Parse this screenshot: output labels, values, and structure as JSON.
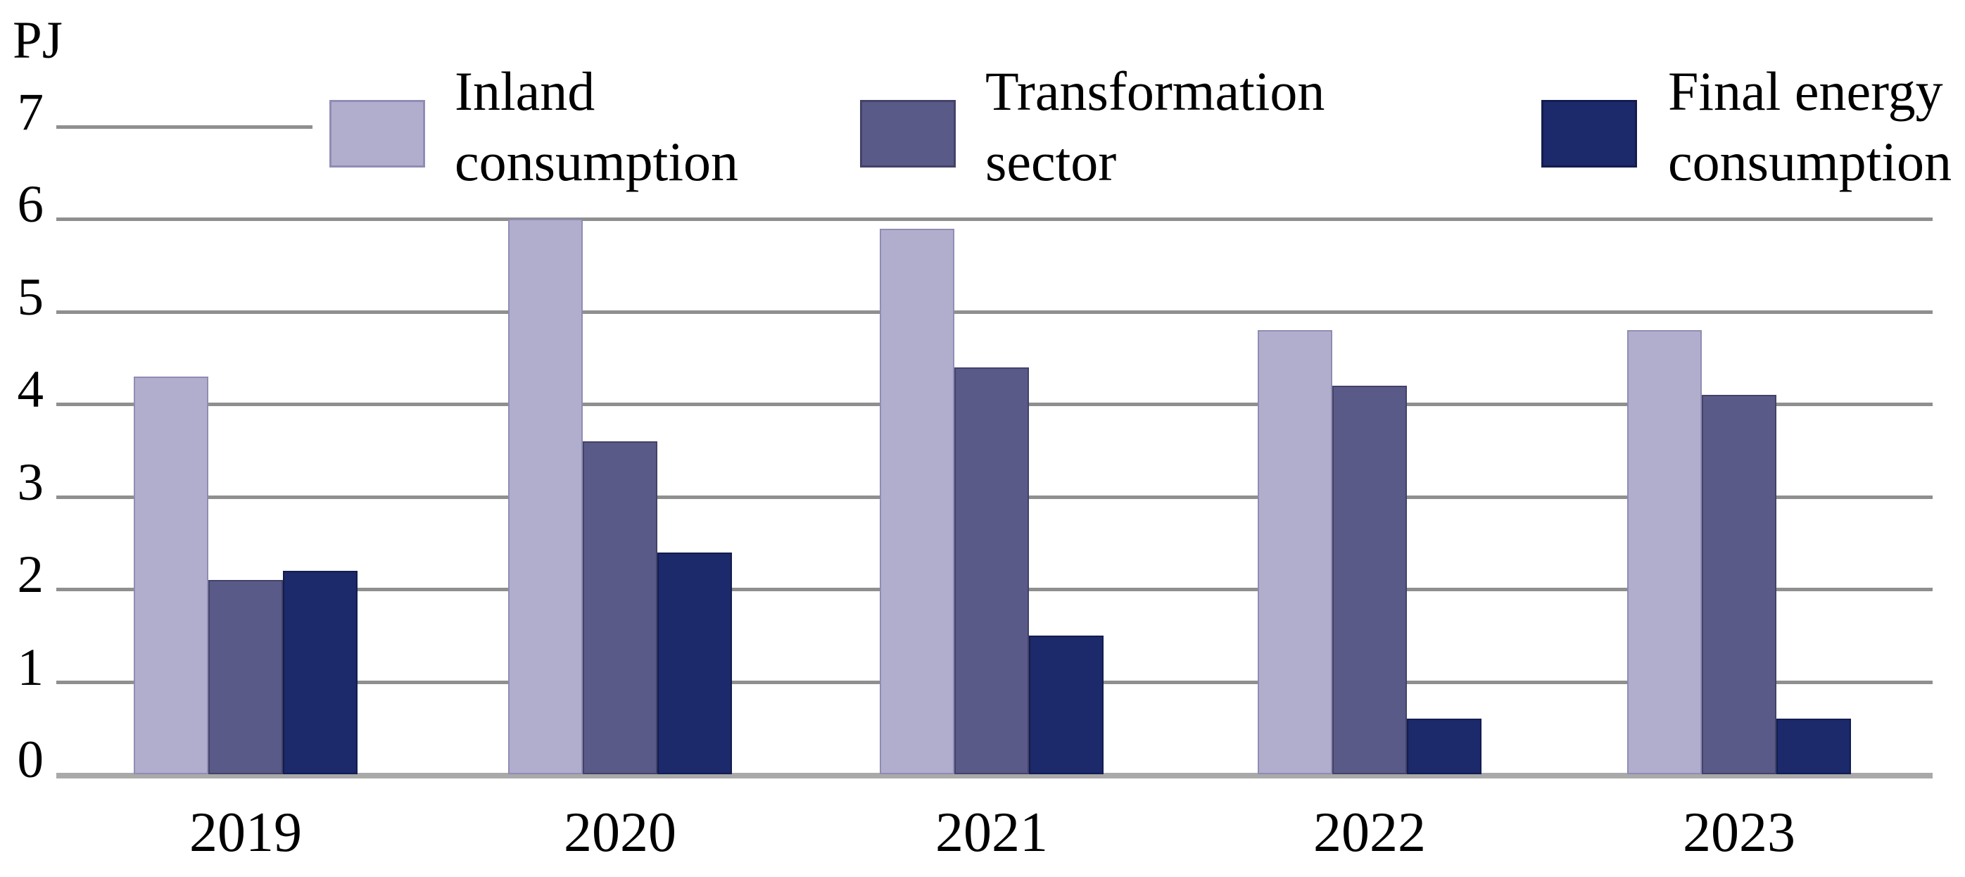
{
  "chart_data": {
    "type": "bar",
    "unit_label": "PJ",
    "categories": [
      "2019",
      "2020",
      "2021",
      "2022",
      "2023"
    ],
    "series": [
      {
        "name": "Inland consumption",
        "label_lines": [
          "Inland",
          "consumption"
        ],
        "color": "#b1aecd",
        "border_color": "#8f8cb5",
        "values": [
          4.3,
          6.0,
          5.9,
          4.8,
          4.8
        ]
      },
      {
        "name": "Transformation sector",
        "label_lines": [
          "Transformation",
          "sector"
        ],
        "color": "#5a5a89",
        "border_color": "#434268",
        "values": [
          2.1,
          3.6,
          4.4,
          4.2,
          4.1
        ]
      },
      {
        "name": "Final energy consumption",
        "label_lines": [
          "Final energy",
          "consumption"
        ],
        "color": "#1c296b",
        "border_color": "#131d4e",
        "values": [
          2.2,
          2.4,
          1.5,
          0.6,
          0.6
        ]
      }
    ],
    "y_ticks": [
      0,
      1,
      2,
      3,
      4,
      5,
      6,
      7
    ],
    "ylim": [
      0,
      7
    ],
    "grid": true,
    "legend_position": "top",
    "gridline_color": "#8f8f8f",
    "baseline_color": "#a9a9a9",
    "text_color": "#000000"
  }
}
